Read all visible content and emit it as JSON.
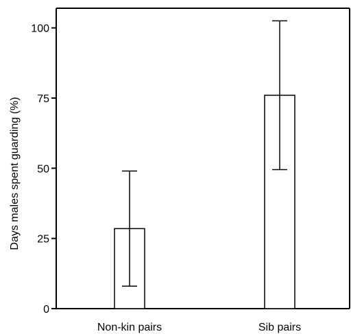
{
  "chart_data": {
    "type": "bar",
    "title": "",
    "xlabel": "",
    "ylabel": "Days males spent guarding (%)",
    "ylim": [
      0,
      107
    ],
    "yticks": [
      0,
      25,
      50,
      75,
      100
    ],
    "categories": [
      "Non-kin pairs",
      "Sib pairs"
    ],
    "values": [
      28.5,
      76
    ],
    "error_low": [
      8,
      49.5
    ],
    "error_high": [
      49,
      102.5
    ],
    "grid": false,
    "legend": "none",
    "colors": {
      "bar_fill": "#ffffff",
      "stroke": "#000000"
    }
  }
}
